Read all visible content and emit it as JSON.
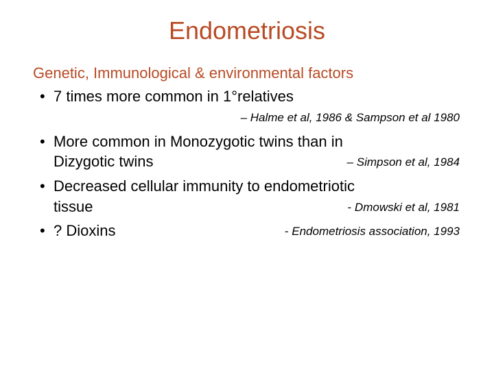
{
  "colors": {
    "title": "#b84a24",
    "subtitle": "#b84a24",
    "body": "#000000",
    "background": "#ffffff"
  },
  "typography": {
    "title_font": "Arial",
    "title_size_pt": 36,
    "subtitle_size_pt": 22,
    "body_font": "Verdana",
    "body_size_pt": 22,
    "cite_size_pt": 17,
    "cite_style": "italic"
  },
  "title": "Endometriosis",
  "subtitle": "Genetic, Immunological & environmental factors",
  "bullets": [
    {
      "text": "7 times more common in 1°relatives",
      "citation": "Halme et al, 1986 & Sampson et al 1980",
      "citation_prefix": "dash",
      "citation_placement": "line-below-right"
    },
    {
      "text": "More common in Monozygotic twins than in Dizygotic twins",
      "citation": "Simpson et al, 1984",
      "citation_prefix": "dash",
      "citation_placement": "inline-right"
    },
    {
      "text": "Decreased cellular immunity to endometriotic tissue",
      "citation": "Dmowski et al, 1981",
      "citation_prefix": "hyphen",
      "citation_placement": "inline-right"
    },
    {
      "text": "? Dioxins",
      "citation": "Endometriosis association, 1993",
      "citation_prefix": "hyphen",
      "citation_placement": "inline-right"
    }
  ]
}
